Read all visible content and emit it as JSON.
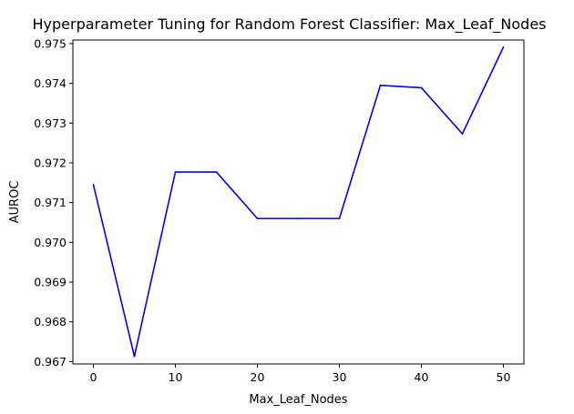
{
  "chart_data": {
    "type": "line",
    "title": "Hyperparameter Tuning for Random Forest Classifier: Max_Leaf_Nodes",
    "xlabel": "Max_Leaf_Nodes",
    "ylabel": "AUROC",
    "x": [
      0,
      5,
      10,
      15,
      20,
      25,
      30,
      35,
      40,
      45,
      50
    ],
    "series": [
      {
        "values": [
          0.97145,
          0.96713,
          0.97177,
          0.97177,
          0.9706,
          0.9706,
          0.9706,
          0.97395,
          0.97389,
          0.97273,
          0.97491
        ],
        "color": "#0000ff"
      }
    ],
    "xlim": [
      -2.5,
      52.5
    ],
    "ylim": [
      0.96694,
      0.97509
    ],
    "xticks": [
      0,
      10,
      20,
      30,
      40,
      50
    ],
    "xtick_labels": [
      "0",
      "10",
      "20",
      "30",
      "40",
      "50"
    ],
    "yticks": [
      0.967,
      0.968,
      0.969,
      0.97,
      0.971,
      0.972,
      0.973,
      0.974,
      0.975
    ],
    "ytick_labels": [
      "0.967",
      "0.968",
      "0.969",
      "0.970",
      "0.971",
      "0.972",
      "0.973",
      "0.974",
      "0.975"
    ],
    "grid": false,
    "legend": "none"
  }
}
